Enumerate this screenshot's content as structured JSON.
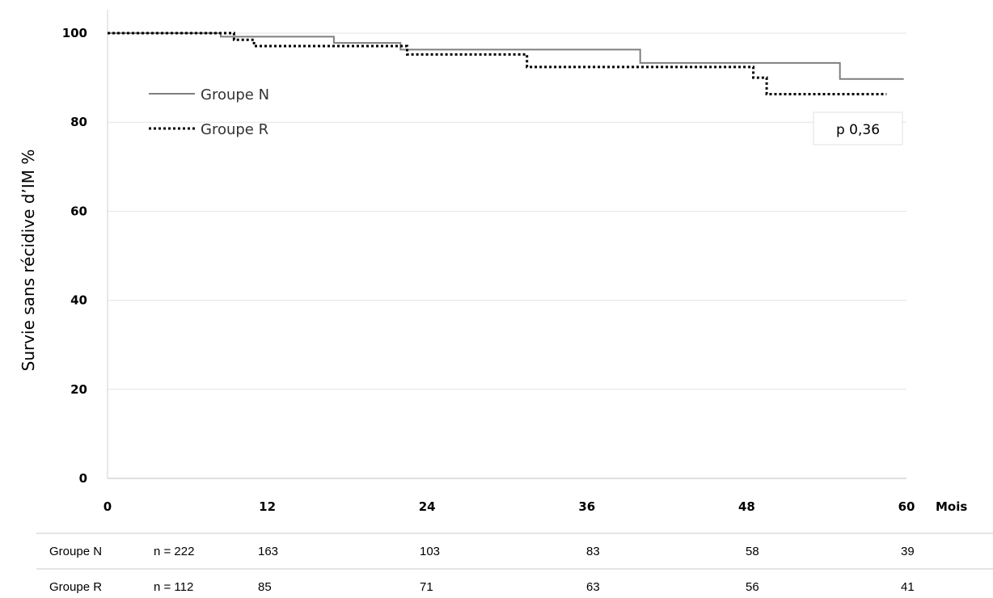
{
  "chart_data": {
    "type": "line",
    "title": "",
    "ylabel": "Survie sans récidive d’IM %",
    "x_unit": "Mois",
    "xlim": [
      0,
      60
    ],
    "ylim": [
      0,
      100
    ],
    "x_ticks": [
      0,
      12,
      24,
      36,
      48,
      60
    ],
    "y_ticks": [
      0,
      20,
      40,
      60,
      80,
      100
    ],
    "grid": "horizontal",
    "legend_position": "top-left",
    "annotation": "p 0,36",
    "series": [
      {
        "name": "Groupe N",
        "style": "solid",
        "color": "#7f7f7f",
        "points": [
          [
            0,
            100
          ],
          [
            8.5,
            100
          ],
          [
            8.5,
            99.2
          ],
          [
            17,
            99.2
          ],
          [
            17,
            97.8
          ],
          [
            22,
            97.8
          ],
          [
            22,
            96.3
          ],
          [
            40,
            96.3
          ],
          [
            40,
            93.3
          ],
          [
            55,
            93.3
          ],
          [
            55,
            89.7
          ],
          [
            59.8,
            89.7
          ]
        ]
      },
      {
        "name": "Groupe R",
        "style": "dotted",
        "color": "#000000",
        "points": [
          [
            0,
            100
          ],
          [
            9.5,
            100
          ],
          [
            9.5,
            98.5
          ],
          [
            11,
            98.5
          ],
          [
            11,
            97.1
          ],
          [
            22.5,
            97.1
          ],
          [
            22.5,
            95.2
          ],
          [
            31.5,
            95.2
          ],
          [
            31.5,
            92.4
          ],
          [
            48.5,
            92.4
          ],
          [
            48.5,
            90
          ],
          [
            49.5,
            90
          ],
          [
            49.5,
            86.3
          ],
          [
            58.5,
            86.3
          ]
        ]
      }
    ],
    "risk_table": {
      "rows": [
        {
          "label": "Groupe N",
          "n": "n = 222",
          "values": [
            "163",
            "103",
            "83",
            "58",
            "39"
          ]
        },
        {
          "label": "Groupe R",
          "n": "n = 112",
          "values": [
            "85",
            "71",
            "63",
            "56",
            "41"
          ]
        }
      ]
    }
  }
}
